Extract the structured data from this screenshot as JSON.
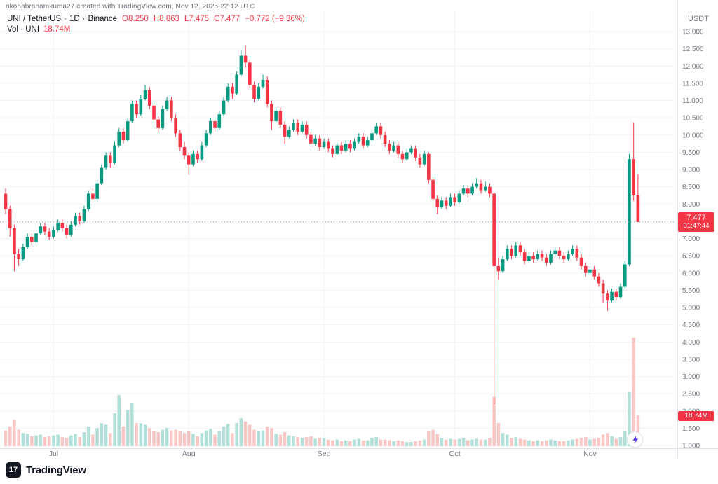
{
  "attribution": "okohabrahamkuma27 created with TradingView.com, Nov 12, 2025 22:12 UTC",
  "legend": {
    "symbol": "UNI / TetherUS",
    "separator": "·",
    "interval": "1D",
    "exchange": "Binance",
    "ohlc": [
      "O8.250",
      "H8.863",
      "L7.475",
      "C7.477",
      "−0.772 (−9.36%)"
    ],
    "volume_label": "Vol · UNI",
    "volume_value": "18.74M"
  },
  "axes": {
    "currency": "USDT",
    "y_ticks": [
      13,
      12.5,
      12,
      11.5,
      11,
      10.5,
      10,
      9.5,
      9,
      8.5,
      8,
      7.5,
      7,
      6.5,
      6,
      5.5,
      5,
      4.5,
      4,
      3.5,
      3,
      2.5,
      2,
      1.5,
      1
    ],
    "x_ticks": [
      {
        "label": "Jul",
        "date": "07-01"
      },
      {
        "label": "Aug",
        "date": "08-01"
      },
      {
        "label": "Sep",
        "date": "09-01"
      },
      {
        "label": "Oct",
        "date": "10-01"
      },
      {
        "label": "Nov",
        "date": "11-01"
      }
    ]
  },
  "price_line": {
    "value": 7.477,
    "label": "7.477",
    "countdown": "01:47:44"
  },
  "volume_badge": "18.74M",
  "branding": {
    "name": "TradingView",
    "mark": "17"
  },
  "colors": {
    "up": "#089981",
    "down": "#f23645",
    "vol_up": "#b2dfd8",
    "vol_down": "#f7c8c6",
    "grid": "#f0f3fa",
    "axis_text": "#787b86",
    "axis_line": "#e0e3eb",
    "price_dash": "#9aa0aa",
    "badge": "#f23645",
    "bolt": "#5d46e5"
  },
  "chart_data": {
    "type": "candlestick+volume",
    "title": "UNI / TetherUS 1D Binance",
    "symbol": "UNI/USDT",
    "timeframe": "1D",
    "ylim": [
      1,
      13
    ],
    "y_tick_step": 0.5,
    "grid": true,
    "columns": [
      "date",
      "open",
      "high",
      "low",
      "close",
      "volume_m"
    ],
    "candles": [
      [
        "06-20",
        8.3,
        8.45,
        7.7,
        7.85,
        9.5
      ],
      [
        "06-21",
        7.85,
        7.95,
        7.05,
        7.3,
        12
      ],
      [
        "06-22",
        7.3,
        7.4,
        6.05,
        6.55,
        16
      ],
      [
        "06-23",
        6.55,
        6.7,
        6.2,
        6.4,
        10
      ],
      [
        "06-24",
        6.4,
        6.85,
        6.35,
        6.75,
        8
      ],
      [
        "06-25",
        6.75,
        7.15,
        6.7,
        7.05,
        7.5
      ],
      [
        "06-26",
        7.05,
        7.15,
        6.8,
        6.9,
        6
      ],
      [
        "06-27",
        6.9,
        7.25,
        6.85,
        7.15,
        6.5
      ],
      [
        "06-28",
        7.15,
        7.45,
        7.1,
        7.35,
        7
      ],
      [
        "06-29",
        7.35,
        7.45,
        7.1,
        7.2,
        5.5
      ],
      [
        "06-30",
        7.2,
        7.3,
        6.95,
        7.05,
        6
      ],
      [
        "07-01",
        7.05,
        7.35,
        7.0,
        7.25,
        6.5
      ],
      [
        "07-02",
        7.25,
        7.55,
        7.2,
        7.45,
        7
      ],
      [
        "07-03",
        7.45,
        7.55,
        7.2,
        7.3,
        5.5
      ],
      [
        "07-04",
        7.3,
        7.4,
        7.0,
        7.1,
        5
      ],
      [
        "07-05",
        7.1,
        7.5,
        7.05,
        7.4,
        6.5
      ],
      [
        "07-06",
        7.4,
        7.75,
        7.35,
        7.65,
        7.5
      ],
      [
        "07-07",
        7.65,
        7.75,
        7.4,
        7.5,
        5.5
      ],
      [
        "07-08",
        7.5,
        7.95,
        7.45,
        7.85,
        8.5
      ],
      [
        "07-09",
        7.85,
        8.4,
        7.8,
        8.3,
        12
      ],
      [
        "07-10",
        8.3,
        8.45,
        8.05,
        8.15,
        7
      ],
      [
        "07-11",
        8.15,
        8.7,
        8.1,
        8.6,
        11
      ],
      [
        "07-12",
        8.6,
        9.15,
        8.55,
        9.05,
        14
      ],
      [
        "07-13",
        9.05,
        9.5,
        9.0,
        9.4,
        13
      ],
      [
        "07-14",
        9.4,
        9.5,
        9.05,
        9.2,
        8
      ],
      [
        "07-15",
        9.2,
        9.8,
        9.15,
        9.7,
        20
      ],
      [
        "07-16",
        9.7,
        10.2,
        9.65,
        10.1,
        31
      ],
      [
        "07-17",
        10.1,
        10.2,
        9.75,
        9.85,
        12
      ],
      [
        "07-18",
        9.85,
        10.5,
        9.8,
        10.4,
        22
      ],
      [
        "07-19",
        10.4,
        11.0,
        10.35,
        10.9,
        26
      ],
      [
        "07-20",
        10.9,
        11.0,
        10.5,
        10.6,
        14
      ],
      [
        "07-21",
        10.6,
        11.15,
        10.55,
        11.05,
        14
      ],
      [
        "07-22",
        11.05,
        11.45,
        11.0,
        11.3,
        13
      ],
      [
        "07-23",
        11.3,
        11.4,
        10.75,
        10.85,
        11
      ],
      [
        "07-24",
        10.85,
        10.95,
        10.35,
        10.45,
        9
      ],
      [
        "07-25",
        10.45,
        10.55,
        10.05,
        10.2,
        8.5
      ],
      [
        "07-26",
        10.2,
        10.85,
        10.15,
        10.75,
        10
      ],
      [
        "07-27",
        10.75,
        11.1,
        10.7,
        11.0,
        11
      ],
      [
        "07-28",
        11.0,
        11.1,
        10.4,
        10.5,
        9.5
      ],
      [
        "07-29",
        10.5,
        10.6,
        9.95,
        10.05,
        10
      ],
      [
        "07-30",
        10.05,
        10.15,
        9.55,
        9.65,
        9
      ],
      [
        "07-31",
        9.65,
        9.8,
        9.3,
        9.4,
        8
      ],
      [
        "08-01",
        9.4,
        9.5,
        8.85,
        9.15,
        9
      ],
      [
        "08-02",
        9.15,
        9.55,
        9.1,
        9.45,
        7.5
      ],
      [
        "08-03",
        9.45,
        9.55,
        9.2,
        9.3,
        6
      ],
      [
        "08-04",
        9.3,
        9.8,
        9.25,
        9.7,
        8
      ],
      [
        "08-05",
        9.7,
        10.15,
        9.65,
        10.05,
        9.5
      ],
      [
        "08-06",
        10.05,
        10.5,
        10.0,
        10.4,
        10.5
      ],
      [
        "08-07",
        10.4,
        10.5,
        10.1,
        10.2,
        7
      ],
      [
        "08-08",
        10.2,
        10.7,
        10.15,
        10.6,
        9
      ],
      [
        "08-09",
        10.6,
        11.1,
        10.55,
        11.0,
        12
      ],
      [
        "08-10",
        11.0,
        11.5,
        10.95,
        11.4,
        13.5
      ],
      [
        "08-11",
        11.4,
        11.5,
        11.05,
        11.2,
        8
      ],
      [
        "08-12",
        11.2,
        11.85,
        11.15,
        11.75,
        14
      ],
      [
        "08-13",
        11.75,
        12.45,
        11.7,
        12.3,
        17
      ],
      [
        "08-14",
        12.3,
        12.6,
        11.95,
        12.1,
        15
      ],
      [
        "08-15",
        12.1,
        12.2,
        11.35,
        11.45,
        13
      ],
      [
        "08-16",
        11.45,
        11.55,
        10.95,
        11.05,
        10
      ],
      [
        "08-17",
        11.05,
        11.5,
        11.0,
        11.4,
        9
      ],
      [
        "08-18",
        11.4,
        11.75,
        11.35,
        11.6,
        9.5
      ],
      [
        "08-19",
        11.6,
        11.7,
        10.8,
        10.9,
        12
      ],
      [
        "08-20",
        10.9,
        11.0,
        10.15,
        10.4,
        11
      ],
      [
        "08-21",
        10.4,
        10.8,
        10.35,
        10.7,
        7.5
      ],
      [
        "08-22",
        10.7,
        10.8,
        10.2,
        10.3,
        7
      ],
      [
        "08-23",
        10.3,
        10.4,
        9.75,
        9.95,
        8.5
      ],
      [
        "08-24",
        9.95,
        10.25,
        9.9,
        10.15,
        6.5
      ],
      [
        "08-25",
        10.15,
        10.45,
        10.1,
        10.35,
        6
      ],
      [
        "08-26",
        10.35,
        10.45,
        10.0,
        10.1,
        5.5
      ],
      [
        "08-27",
        10.1,
        10.4,
        10.05,
        10.3,
        5
      ],
      [
        "08-28",
        10.3,
        10.4,
        9.9,
        10.0,
        5.5
      ],
      [
        "08-29",
        10.0,
        10.1,
        9.65,
        9.75,
        6
      ],
      [
        "08-30",
        9.75,
        10.0,
        9.7,
        9.9,
        4.5
      ],
      [
        "08-31",
        9.9,
        10.0,
        9.55,
        9.65,
        5
      ],
      [
        "09-01",
        9.65,
        9.9,
        9.6,
        9.8,
        5
      ],
      [
        "09-02",
        9.8,
        9.9,
        9.5,
        9.6,
        4
      ],
      [
        "09-03",
        9.6,
        9.7,
        9.35,
        9.45,
        3.5
      ],
      [
        "09-04",
        9.45,
        9.8,
        9.4,
        9.7,
        4
      ],
      [
        "09-05",
        9.7,
        9.8,
        9.45,
        9.55,
        3
      ],
      [
        "09-06",
        9.55,
        9.85,
        9.5,
        9.75,
        3.5
      ],
      [
        "09-07",
        9.75,
        9.85,
        9.5,
        9.6,
        3
      ],
      [
        "09-08",
        9.6,
        9.9,
        9.55,
        9.8,
        4
      ],
      [
        "09-09",
        9.8,
        10.05,
        9.75,
        9.95,
        4.5
      ],
      [
        "09-10",
        9.95,
        10.05,
        9.6,
        9.7,
        3.5
      ],
      [
        "09-11",
        9.7,
        9.95,
        9.65,
        9.85,
        3.5
      ],
      [
        "09-12",
        9.85,
        10.15,
        9.8,
        10.05,
        5
      ],
      [
        "09-13",
        10.05,
        10.35,
        10.0,
        10.25,
        5.5
      ],
      [
        "09-14",
        10.25,
        10.35,
        9.9,
        10.0,
        4
      ],
      [
        "09-15",
        10.0,
        10.1,
        9.65,
        9.75,
        4
      ],
      [
        "09-16",
        9.75,
        9.85,
        9.45,
        9.55,
        3.5
      ],
      [
        "09-17",
        9.55,
        9.8,
        9.5,
        9.7,
        3
      ],
      [
        "09-18",
        9.7,
        9.8,
        9.35,
        9.45,
        3.5
      ],
      [
        "09-19",
        9.45,
        9.55,
        9.2,
        9.3,
        3
      ],
      [
        "09-20",
        9.3,
        9.6,
        9.25,
        9.5,
        2.5
      ],
      [
        "09-21",
        9.5,
        9.7,
        9.45,
        9.6,
        2.5
      ],
      [
        "09-22",
        9.6,
        9.7,
        9.25,
        9.35,
        3
      ],
      [
        "09-23",
        9.35,
        9.45,
        9.05,
        9.15,
        3.5
      ],
      [
        "09-24",
        9.15,
        9.55,
        9.1,
        9.45,
        4
      ],
      [
        "09-25",
        9.45,
        9.5,
        8.6,
        8.7,
        9
      ],
      [
        "09-26",
        8.7,
        8.8,
        7.9,
        8.15,
        10
      ],
      [
        "09-27",
        8.15,
        8.25,
        7.7,
        7.9,
        7.5
      ],
      [
        "09-28",
        7.9,
        8.2,
        7.85,
        8.1,
        5
      ],
      [
        "09-29",
        8.1,
        8.2,
        7.85,
        7.95,
        4
      ],
      [
        "09-30",
        7.95,
        8.3,
        7.9,
        8.2,
        4.5
      ],
      [
        "10-01",
        8.2,
        8.3,
        7.95,
        8.05,
        4
      ],
      [
        "10-02",
        8.05,
        8.4,
        8.0,
        8.3,
        4.5
      ],
      [
        "10-03",
        8.3,
        8.55,
        8.25,
        8.45,
        5
      ],
      [
        "10-04",
        8.45,
        8.55,
        8.2,
        8.3,
        3.5
      ],
      [
        "10-05",
        8.3,
        8.6,
        8.25,
        8.5,
        4
      ],
      [
        "10-06",
        8.5,
        8.75,
        8.45,
        8.6,
        4.5
      ],
      [
        "10-07",
        8.6,
        8.7,
        8.3,
        8.4,
        4
      ],
      [
        "10-08",
        8.4,
        8.65,
        8.35,
        8.5,
        4
      ],
      [
        "10-09",
        8.5,
        8.6,
        8.2,
        8.3,
        5
      ],
      [
        "10-10",
        8.3,
        8.35,
        2.2,
        6.2,
        30
      ],
      [
        "10-11",
        6.2,
        6.45,
        5.8,
        6.05,
        14
      ],
      [
        "10-12",
        6.05,
        6.5,
        6.0,
        6.4,
        8
      ],
      [
        "10-13",
        6.4,
        6.8,
        6.35,
        6.7,
        7
      ],
      [
        "10-14",
        6.7,
        6.8,
        6.4,
        6.5,
        5
      ],
      [
        "10-15",
        6.5,
        6.9,
        6.45,
        6.8,
        5.5
      ],
      [
        "10-16",
        6.8,
        6.9,
        6.5,
        6.6,
        4.5
      ],
      [
        "10-17",
        6.6,
        6.7,
        6.25,
        6.35,
        4
      ],
      [
        "10-18",
        6.35,
        6.6,
        6.3,
        6.5,
        3.5
      ],
      [
        "10-19",
        6.5,
        6.6,
        6.3,
        6.4,
        3
      ],
      [
        "10-20",
        6.4,
        6.65,
        6.35,
        6.55,
        3.5
      ],
      [
        "10-21",
        6.55,
        6.65,
        6.35,
        6.45,
        3
      ],
      [
        "10-22",
        6.45,
        6.55,
        6.2,
        6.3,
        3.5
      ],
      [
        "10-23",
        6.3,
        6.65,
        6.25,
        6.55,
        4
      ],
      [
        "10-24",
        6.55,
        6.75,
        6.5,
        6.65,
        3.5
      ],
      [
        "10-25",
        6.65,
        6.75,
        6.4,
        6.5,
        3
      ],
      [
        "10-26",
        6.5,
        6.6,
        6.3,
        6.4,
        3
      ],
      [
        "10-27",
        6.4,
        6.65,
        6.35,
        6.55,
        3.5
      ],
      [
        "10-28",
        6.55,
        6.8,
        6.5,
        6.7,
        4
      ],
      [
        "10-29",
        6.7,
        6.8,
        6.35,
        6.45,
        4.5
      ],
      [
        "10-30",
        6.45,
        6.55,
        6.1,
        6.2,
        5
      ],
      [
        "10-31",
        6.2,
        6.3,
        5.9,
        6.0,
        5.5
      ],
      [
        "11-01",
        6.0,
        6.2,
        5.95,
        6.1,
        4
      ],
      [
        "11-02",
        6.1,
        6.2,
        5.8,
        5.9,
        4.5
      ],
      [
        "11-03",
        5.9,
        6.0,
        5.6,
        5.7,
        5
      ],
      [
        "11-04",
        5.7,
        5.8,
        5.15,
        5.4,
        7
      ],
      [
        "11-05",
        5.4,
        5.5,
        4.9,
        5.2,
        8
      ],
      [
        "11-06",
        5.2,
        5.55,
        5.15,
        5.45,
        6
      ],
      [
        "11-07",
        5.45,
        5.55,
        5.2,
        5.3,
        4.5
      ],
      [
        "11-08",
        5.3,
        5.7,
        5.25,
        5.6,
        5.5
      ],
      [
        "11-09",
        5.6,
        6.35,
        5.55,
        6.25,
        9
      ],
      [
        "11-10",
        6.25,
        9.45,
        6.2,
        9.3,
        33
      ],
      [
        "11-11",
        9.3,
        10.36,
        8.1,
        8.25,
        66
      ],
      [
        "11-12",
        8.25,
        8.863,
        7.475,
        7.477,
        18.74
      ]
    ]
  }
}
